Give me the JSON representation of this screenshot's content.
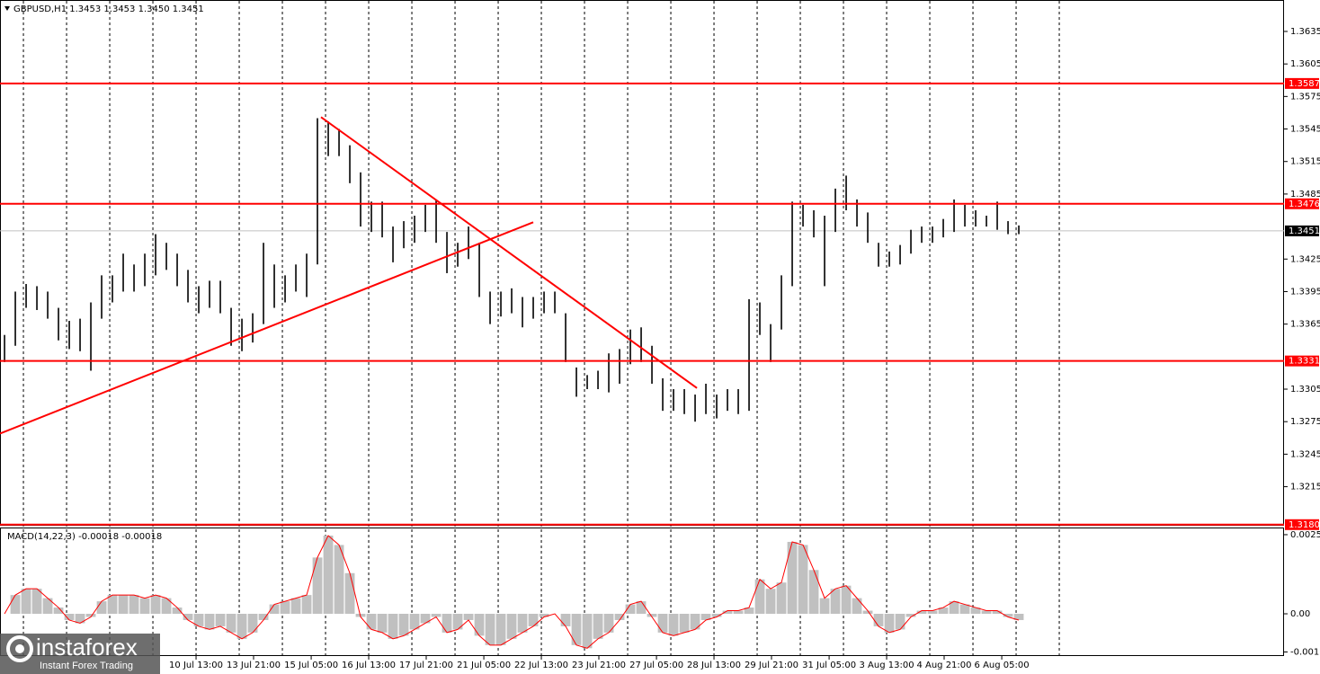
{
  "chart_data": [
    {
      "type": "price-bars",
      "title": "GBPUSD,H1  1.3453 1.3453 1.3450 1.3451",
      "color": "#000000",
      "high": [
        1.3355,
        1.3395,
        1.3402,
        1.34,
        1.3395,
        1.338,
        1.3368,
        1.337,
        1.3385,
        1.341,
        1.341,
        1.343,
        1.342,
        1.343,
        1.3448,
        1.344,
        1.343,
        1.3415,
        1.34,
        1.3405,
        1.3405,
        1.338,
        1.337,
        1.3375,
        1.344,
        1.342,
        1.341,
        1.342,
        1.343,
        1.3555,
        1.3552,
        1.3545,
        1.353,
        1.3505,
        1.3478,
        1.3478,
        1.3455,
        1.346,
        1.3465,
        1.3475,
        1.348,
        1.345,
        1.344,
        1.3455,
        1.344,
        1.3395,
        1.3395,
        1.3398,
        1.339,
        1.339,
        1.3395,
        1.3395,
        1.3375,
        1.3325,
        1.3318,
        1.3322,
        1.3338,
        1.3342,
        1.336,
        1.3362,
        1.3345,
        1.3315,
        1.3305,
        1.3305,
        1.33,
        1.331,
        1.33,
        1.3305,
        1.3305,
        1.3388,
        1.3385,
        1.3365,
        1.341,
        1.3478,
        1.3475,
        1.347,
        1.3465,
        1.349,
        1.3502,
        1.348,
        1.3468,
        1.344,
        1.3432,
        1.3438,
        1.3452,
        1.3455,
        1.3455,
        1.3462,
        1.348,
        1.3475,
        1.347,
        1.3465,
        1.3478,
        1.346,
        1.3456
      ],
      "low": [
        1.333,
        1.3345,
        1.338,
        1.3378,
        1.337,
        1.335,
        1.3342,
        1.334,
        1.3322,
        1.337,
        1.3385,
        1.3395,
        1.3395,
        1.34,
        1.341,
        1.3415,
        1.34,
        1.3385,
        1.3375,
        1.338,
        1.3375,
        1.3345,
        1.334,
        1.3348,
        1.3365,
        1.338,
        1.3385,
        1.3395,
        1.339,
        1.342,
        1.352,
        1.352,
        1.3495,
        1.3455,
        1.345,
        1.3445,
        1.3422,
        1.3435,
        1.344,
        1.345,
        1.344,
        1.3412,
        1.3418,
        1.3425,
        1.339,
        1.3365,
        1.3372,
        1.3375,
        1.3362,
        1.337,
        1.3375,
        1.3375,
        1.333,
        1.3298,
        1.3305,
        1.3305,
        1.3302,
        1.331,
        1.3328,
        1.333,
        1.331,
        1.3285,
        1.3285,
        1.3282,
        1.3275,
        1.3282,
        1.3278,
        1.3285,
        1.3282,
        1.3285,
        1.3355,
        1.333,
        1.336,
        1.34,
        1.3455,
        1.3445,
        1.34,
        1.345,
        1.347,
        1.3455,
        1.344,
        1.3418,
        1.3418,
        1.342,
        1.343,
        1.344,
        1.344,
        1.3445,
        1.345,
        1.3455,
        1.3455,
        1.3455,
        1.3452,
        1.3448,
        1.3448
      ],
      "xlim": [
        -0.42,
        118.58
      ],
      "ylim": [
        1.3179,
        1.3664
      ],
      "yticks": [
        1.3635,
        1.3605,
        1.3575,
        1.3545,
        1.3515,
        1.3485,
        1.3425,
        1.3395,
        1.3365,
        1.3305,
        1.3275,
        1.3245,
        1.3215
      ],
      "xgrid": [
        1.75,
        5.75,
        9.75,
        13.75,
        17.75,
        21.75,
        25.75,
        29.75,
        33.75,
        37.75,
        41.75,
        45.75,
        49.75,
        53.75,
        57.75,
        61.75,
        65.75,
        69.75,
        73.75,
        77.75,
        81.75,
        85.75,
        89.75,
        93.75,
        97.75
      ],
      "xticks": [
        {
          "value": 17.75,
          "label": "10 Jul 13:00"
        },
        {
          "value": 23.08,
          "label": "13 Jul 21:00"
        },
        {
          "value": 28.42,
          "label": "15 Jul 05:00"
        },
        {
          "value": 33.75,
          "label": "16 Jul 13:00"
        },
        {
          "value": 39.08,
          "label": "17 Jul 21:00"
        },
        {
          "value": 44.42,
          "label": "21 Jul 05:00"
        },
        {
          "value": 49.75,
          "label": "22 Jul 13:00"
        },
        {
          "value": 55.08,
          "label": "23 Jul 21:00"
        },
        {
          "value": 60.42,
          "label": "27 Jul 05:00"
        },
        {
          "value": 65.75,
          "label": "28 Jul 13:00"
        },
        {
          "value": 71.08,
          "label": "29 Jul 21:00"
        },
        {
          "value": 76.42,
          "label": "31 Jul 05:00"
        },
        {
          "value": 81.75,
          "label": "3 Aug 13:00"
        },
        {
          "value": 87.08,
          "label": "4 Aug 21:00"
        },
        {
          "value": 92.42,
          "label": "6 Aug 05:00"
        }
      ],
      "levels": [
        {
          "value": 1.3587,
          "label": "1.3587"
        },
        {
          "value": 1.3476,
          "label": "1.3476"
        },
        {
          "value": 1.3331,
          "label": "1.3331"
        },
        {
          "value": 1.318,
          "label": "1.3180"
        }
      ],
      "level_color": "#ff0000",
      "current": {
        "value": 1.3451,
        "label": "1.3451"
      },
      "current_color": "#c0c0c0",
      "trendlines": [
        {
          "x": [
            -0.42,
            49
          ],
          "y": [
            1.3264,
            1.3459
          ]
        },
        {
          "x": [
            29.33,
            64.17
          ],
          "y": [
            1.3556,
            1.3306
          ]
        }
      ],
      "grid": true
    },
    {
      "type": "macd",
      "title": "MACD(14,22,3) -0.00018 -0.00018",
      "color": "#c0c0c0",
      "line_color": "#ff0000",
      "values": [
        0,
        0.0006,
        0.0008,
        0.0008,
        0.0005,
        0.0002,
        -0.0002,
        -0.0003,
        -0.0001,
        0.0004,
        0.0006,
        0.0006,
        0.0006,
        0.0005,
        0.0006,
        0.0005,
        0.0002,
        -0.0002,
        -0.0004,
        -0.0005,
        -0.0004,
        -0.0006,
        -0.0008,
        -0.0006,
        -0.0002,
        0.0003,
        0.0004,
        0.0005,
        0.0006,
        0.0018,
        0.0025,
        0.0022,
        0.0013,
        -0.0001,
        -0.0005,
        -0.0006,
        -0.0008,
        -0.0007,
        -0.0005,
        -0.0003,
        -0.0001,
        -0.0006,
        -0.0005,
        -0.0002,
        -0.0007,
        -0.001,
        -0.001,
        -0.0008,
        -0.0006,
        -0.0004,
        -0.0001,
        0,
        -0.0004,
        -0.001,
        -0.0011,
        -0.0008,
        -0.0006,
        -0.0002,
        0.0003,
        0.0004,
        -0.0001,
        -0.0006,
        -0.0007,
        -0.0006,
        -0.0005,
        -0.0002,
        -0.0001,
        0.0001,
        0.0001,
        0.0002,
        0.0011,
        0.0008,
        0.001,
        0.0023,
        0.0022,
        0.0014,
        0.0005,
        0.0008,
        0.0009,
        0.0005,
        0.0001,
        -0.0004,
        -0.0006,
        -0.0005,
        -0.0001,
        0.0001,
        0.0001,
        0.0002,
        0.0004,
        0.0003,
        0.0002,
        0.0001,
        0.0001,
        -0.0001,
        -0.0002
      ],
      "xlim": [
        -0.42,
        118.58
      ],
      "ylim": [
        -0.00135,
        0.00273
      ],
      "yticks": [
        0.00253,
        {
          "value": 0,
          "label": "0.00"
        },
        -0.00122
      ]
    }
  ],
  "watermark": {
    "brand": "instaforex",
    "tagline": "Instant Forex Trading"
  }
}
